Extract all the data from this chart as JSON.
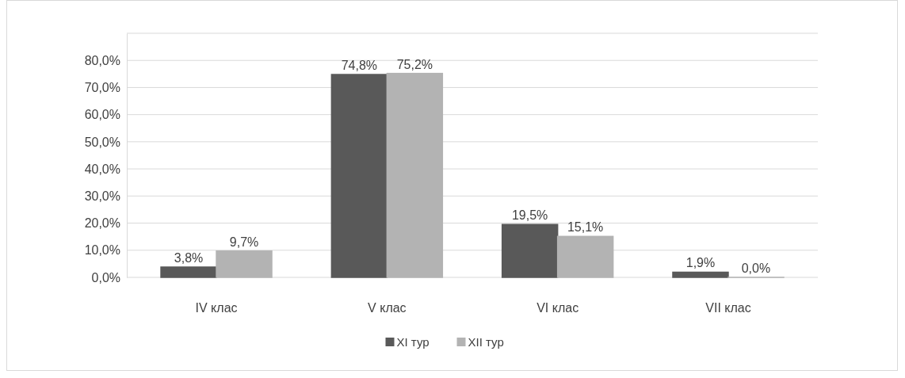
{
  "chart_data": {
    "type": "bar",
    "categories": [
      "IV клас",
      "V клас",
      "VI клас",
      "VII клас"
    ],
    "series": [
      {
        "name": "XI тур",
        "color": "#595959",
        "values": [
          3.8,
          74.8,
          19.5,
          1.9
        ],
        "value_labels": [
          "3,8%",
          "74,8%",
          "19,5%",
          "1,9%"
        ]
      },
      {
        "name": "XII тур",
        "color": "#b3b3b3",
        "values": [
          9.7,
          75.2,
          15.1,
          0.0
        ],
        "value_labels": [
          "9,7%",
          "75,2%",
          "15,1%",
          "0,0%"
        ]
      }
    ],
    "ylim": [
      0,
      90
    ],
    "yticks": [
      {
        "value": 0,
        "label": "0,0%"
      },
      {
        "value": 10,
        "label": "10,0%"
      },
      {
        "value": 20,
        "label": "20,0%"
      },
      {
        "value": 30,
        "label": "30,0%"
      },
      {
        "value": 40,
        "label": "40,0%"
      },
      {
        "value": 50,
        "label": "50,0%"
      },
      {
        "value": 60,
        "label": "60,0%"
      },
      {
        "value": 70,
        "label": "70,0%"
      },
      {
        "value": 80,
        "label": "80,0%"
      },
      {
        "value": 90,
        "label": null
      }
    ],
    "grid": "y",
    "legend": "bottom"
  }
}
